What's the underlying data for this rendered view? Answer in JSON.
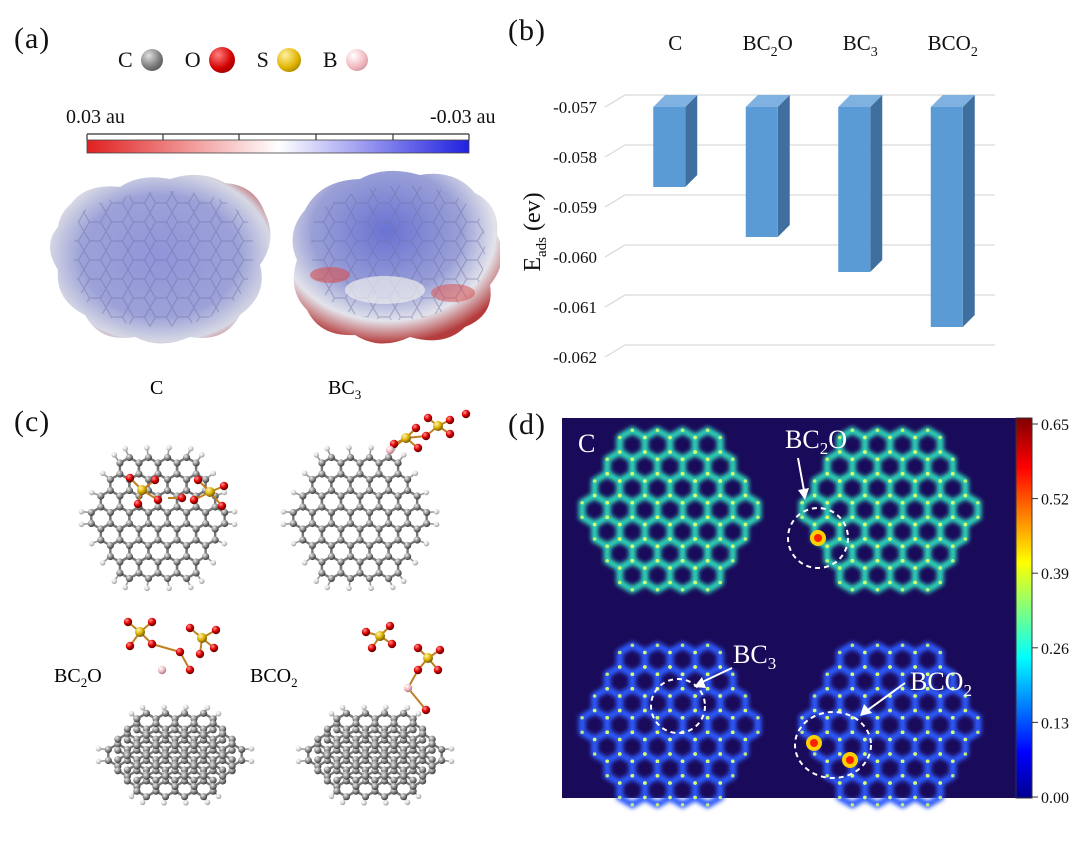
{
  "panels": {
    "a": "(a)",
    "b": "(b)",
    "c": "(c)",
    "d": "(d)"
  },
  "panel_a": {
    "legend": [
      {
        "label": "C",
        "color": "#7a7a7a",
        "icon": "carbon-atom-sphere"
      },
      {
        "label": "O",
        "color": "#d40000",
        "icon": "oxygen-atom-sphere"
      },
      {
        "label": "S",
        "color": "#e0b400",
        "icon": "sulfur-atom-sphere"
      },
      {
        "label": "B",
        "color": "#f2b9c0",
        "icon": "boron-atom-sphere"
      }
    ],
    "colorbar_left": "0.03 au",
    "colorbar_right": "-0.03 au"
  },
  "chart_data": {
    "type": "bar",
    "categories": [
      "C",
      "BC2O",
      "BC3",
      "BCO2"
    ],
    "category_labels": [
      {
        "main": "C",
        "sub": "",
        "tail": ""
      },
      {
        "main": "BC",
        "sub": "2",
        "tail": "O"
      },
      {
        "main": "BC",
        "sub": "3",
        "tail": ""
      },
      {
        "main": "BCO",
        "sub": "2",
        "tail": ""
      }
    ],
    "values": [
      -0.0586,
      -0.0596,
      -0.0603,
      -0.0614
    ],
    "ylim": [
      -0.062,
      -0.057
    ],
    "yticks": [
      "-0.057",
      "-0.058",
      "-0.059",
      "-0.060",
      "-0.061",
      "-0.062"
    ],
    "ylabel_main": "E",
    "ylabel_sub": "ads",
    "ylabel_tail": " (ev)",
    "xlabel": "",
    "grid": true,
    "bar_color": "#5b9bd5",
    "bar_side_color": "#3e6f9e",
    "bar_top_color": "#7fb2e0"
  },
  "panel_c": {
    "labels": [
      {
        "main": "C",
        "sub": "",
        "tail": ""
      },
      {
        "main": "BC",
        "sub": "3",
        "tail": ""
      },
      {
        "main": "BC",
        "sub": "2",
        "tail": "O"
      },
      {
        "main": "BCO",
        "sub": "2",
        "tail": ""
      }
    ]
  },
  "panel_d": {
    "labels": [
      {
        "main": "C",
        "sub": "",
        "tail": ""
      },
      {
        "main": "BC",
        "sub": "2",
        "tail": "O"
      },
      {
        "main": "BC",
        "sub": "3",
        "tail": ""
      },
      {
        "main": "BCO",
        "sub": "2",
        "tail": ""
      }
    ],
    "colorbar_ticks": [
      "0.65",
      "0.52",
      "0.39",
      "0.26",
      "0.13",
      "0.00"
    ]
  }
}
